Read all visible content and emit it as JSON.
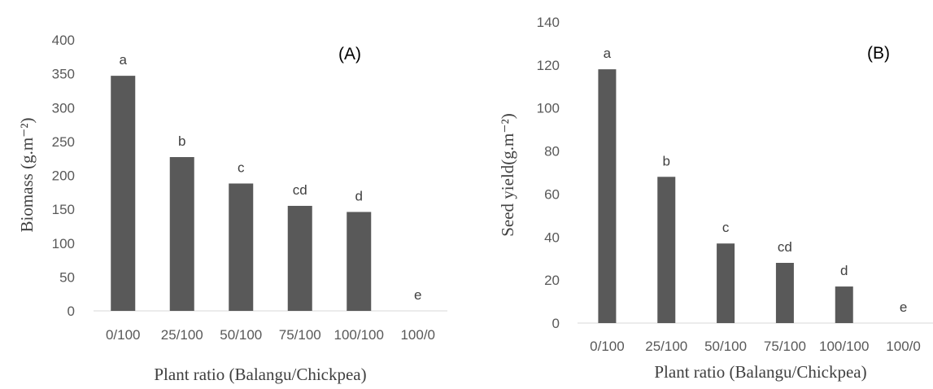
{
  "chart_data": [
    {
      "type": "bar",
      "panel_label": "(A)",
      "categories": [
        "0/100",
        "25/100",
        "50/100",
        "75/100",
        "100/100",
        "100/0"
      ],
      "values": [
        347,
        227,
        188,
        155,
        146,
        0
      ],
      "significance_letters": [
        "a",
        "b",
        "c",
        "cd",
        "d",
        "e"
      ],
      "xlabel": "Plant ratio (Balangu/Chickpea)",
      "ylabel": "Biomass (g.m⁻²)",
      "ylim": [
        0,
        400
      ],
      "yticks": [
        0,
        50,
        100,
        150,
        200,
        250,
        300,
        350,
        400
      ],
      "bar_color": "#595959",
      "grid": false
    },
    {
      "type": "bar",
      "panel_label": "(B)",
      "categories": [
        "0/100",
        "25/100",
        "50/100",
        "75/100",
        "100/100",
        "100/0"
      ],
      "values": [
        118,
        68,
        37,
        28,
        17,
        0
      ],
      "significance_letters": [
        "a",
        "b",
        "c",
        "cd",
        "d",
        "e"
      ],
      "xlabel": "Plant ratio (Balangu/Chickpea)",
      "ylabel": "Seed yield(g.m⁻²)",
      "ylim": [
        0,
        140
      ],
      "yticks": [
        0,
        20,
        40,
        60,
        80,
        100,
        120,
        140
      ],
      "bar_color": "#595959",
      "grid": false
    }
  ]
}
